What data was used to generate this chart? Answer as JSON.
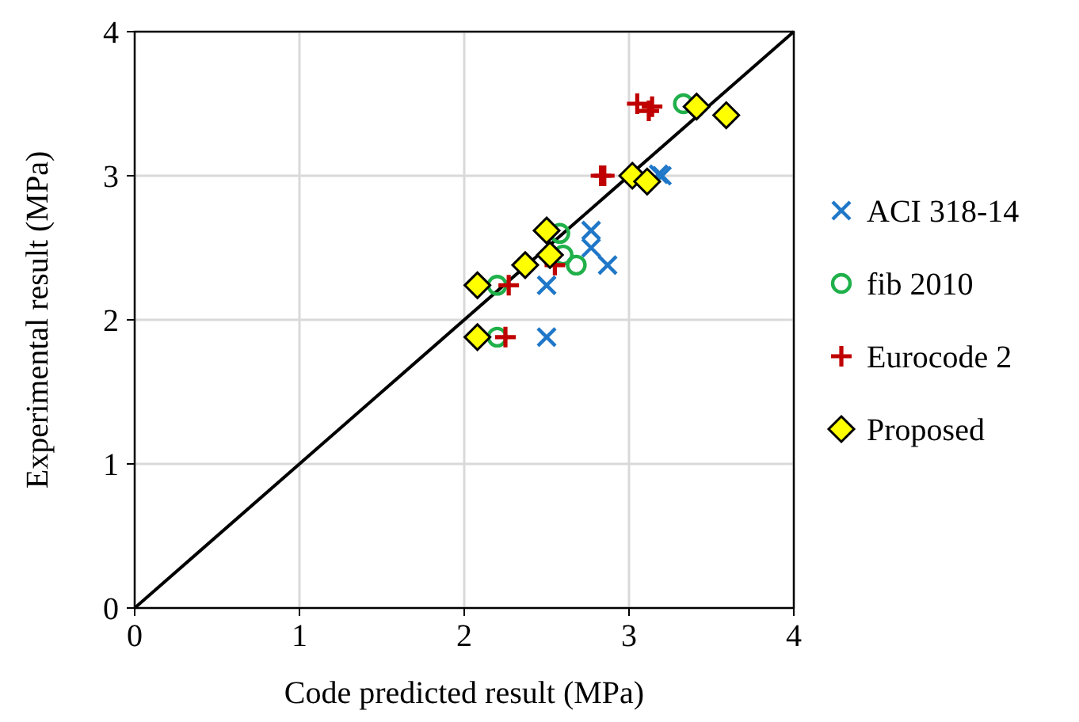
{
  "chart_data": {
    "type": "scatter",
    "xlabel": "Code predicted result (MPa)",
    "ylabel": "Experimental result (MPa)",
    "xlim": [
      0,
      4
    ],
    "ylim": [
      0,
      4
    ],
    "xticks": [
      0,
      1,
      2,
      3,
      4
    ],
    "yticks": [
      0,
      1,
      2,
      3,
      4
    ],
    "grid": true,
    "legend": "right",
    "series": [
      {
        "type": "line",
        "color": "#000000",
        "marker": "none",
        "x": [
          0,
          4
        ],
        "values": [
          0,
          4
        ]
      },
      {
        "name": "ACI 318-14",
        "color": "#1f77c8",
        "marker": "x",
        "x": [
          2.5,
          2.5,
          2.77,
          2.77,
          2.87,
          3.2,
          3.18
        ],
        "values": [
          1.88,
          2.24,
          2.62,
          2.5,
          2.38,
          3.0,
          3.01
        ]
      },
      {
        "name": "fib 2010",
        "color": "#1fb04a",
        "marker": "circle",
        "x": [
          2.2,
          2.2,
          2.58,
          2.6,
          2.68,
          3.33
        ],
        "values": [
          1.88,
          2.24,
          2.6,
          2.45,
          2.38,
          3.5
        ]
      },
      {
        "name": "Eurocode 2",
        "color": "#c00000",
        "marker": "cross",
        "x": [
          2.25,
          2.27,
          2.55,
          2.83,
          2.85,
          3.05,
          3.12,
          3.14
        ],
        "values": [
          1.88,
          2.24,
          2.38,
          3.0,
          3.0,
          3.5,
          3.45,
          3.48
        ]
      },
      {
        "name": "Proposed",
        "color": "#ffff00",
        "marker": "diamond",
        "x": [
          2.08,
          2.08,
          2.37,
          2.52,
          2.5,
          3.02,
          3.11,
          3.41,
          3.59
        ],
        "values": [
          1.88,
          2.24,
          2.38,
          2.45,
          2.62,
          3.0,
          2.96,
          3.48,
          3.42
        ]
      }
    ]
  }
}
